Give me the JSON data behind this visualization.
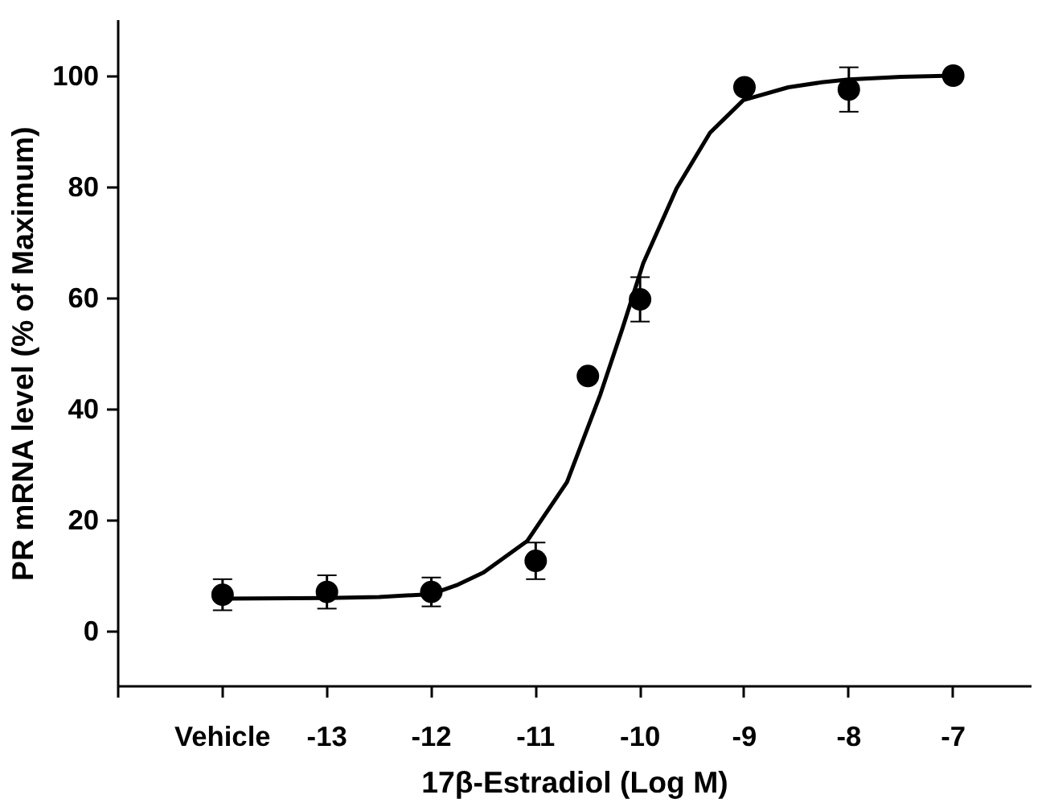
{
  "chart_data": {
    "type": "scatter",
    "xlabel": "17β-Estradiol (Log M)",
    "ylabel": "PR mRNA level (% of Maximum)",
    "xlim": [
      -15,
      -6.25
    ],
    "ylim": [
      -10,
      110
    ],
    "xticks": [
      {
        "value": -15,
        "label": null
      },
      {
        "value": -14,
        "label": "Vehicle"
      },
      -13,
      -12,
      -11,
      -10,
      -9,
      -8,
      -7
    ],
    "yticks": [
      0,
      20,
      40,
      60,
      80,
      100
    ],
    "grid": false,
    "marker": "circle",
    "series": [
      {
        "color": "#000000",
        "x": [
          -14,
          -13,
          -12,
          -11,
          -10.5,
          -10,
          -9,
          -8,
          -7
        ],
        "values": [
          6.5,
          7,
          7,
          12.6,
          45.9,
          59.7,
          97.9,
          97.5,
          100
        ],
        "errors": [
          2.8,
          3.0,
          2.6,
          3.3,
          null,
          4.0,
          null,
          4.0,
          null
        ]
      },
      {
        "type": "line",
        "color": "#000000",
        "line_style": "solid",
        "marker": "none",
        "x": [
          -14,
          -13,
          -12.5,
          -12,
          -11.76,
          -11.5,
          -11.08,
          -10.7,
          -10.38,
          -10.17,
          -9.97,
          -9.65,
          -9.33,
          -9.01,
          -8.58,
          -8.26,
          -8,
          -7.5,
          -7
        ],
        "values": [
          5.8,
          5.9,
          6.1,
          6.6,
          8.2,
          10.5,
          16.2,
          26.8,
          42.6,
          54.4,
          66.2,
          79.7,
          89.7,
          95.6,
          97.9,
          98.8,
          99.3,
          99.8,
          100
        ]
      }
    ]
  }
}
